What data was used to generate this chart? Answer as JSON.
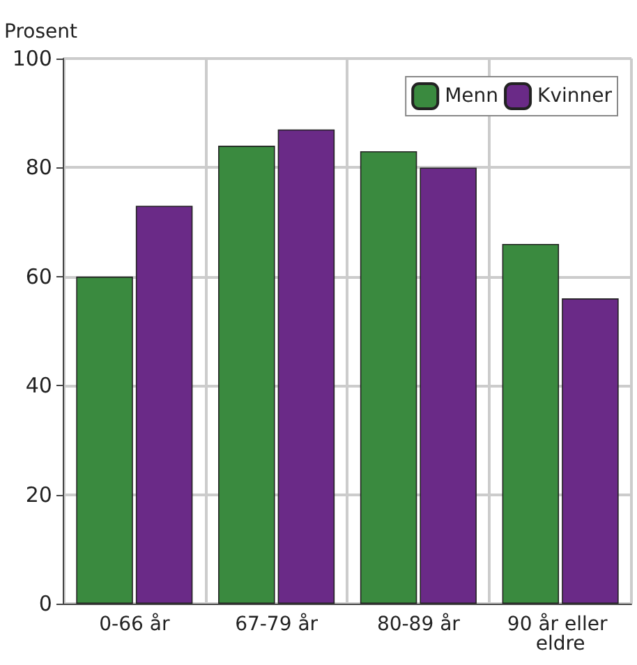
{
  "chart_data": {
    "type": "bar",
    "ylabel": "Prosent",
    "categories": [
      "0-66 år",
      "67-79 år",
      "80-89 år",
      "90 år eller eldre"
    ],
    "series": [
      {
        "name": "Menn",
        "color": "#3a8a3f",
        "values": [
          60,
          84,
          83,
          66
        ]
      },
      {
        "name": "Kvinner",
        "color": "#6a2a87",
        "values": [
          73,
          87,
          80,
          56
        ]
      }
    ],
    "ylim": [
      0,
      100
    ],
    "yticks": [
      0,
      20,
      40,
      60,
      80,
      100
    ],
    "grid": true,
    "legend": "top right"
  }
}
